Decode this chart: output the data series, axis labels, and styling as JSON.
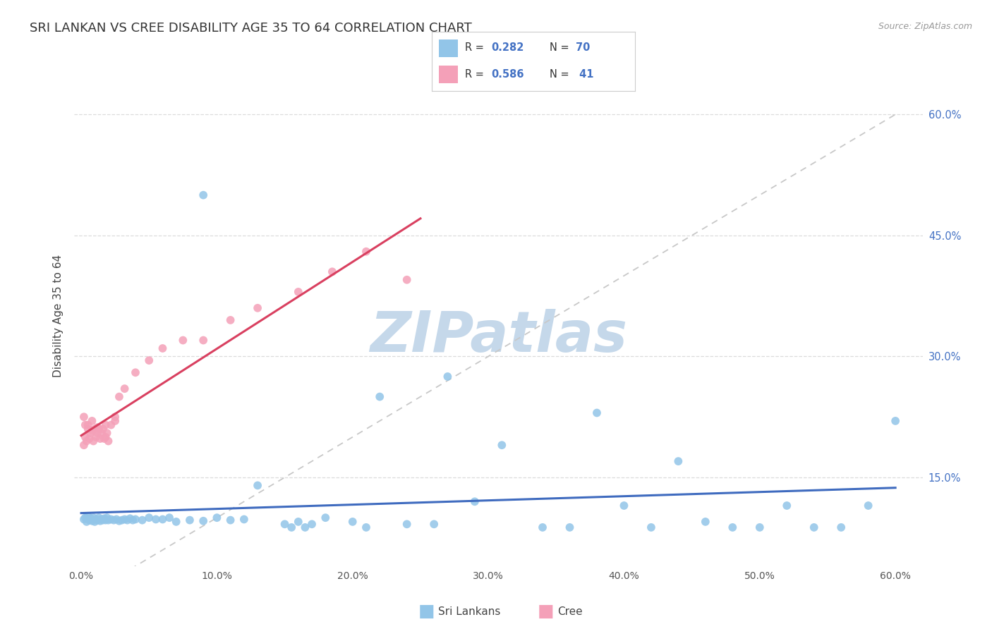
{
  "title": "SRI LANKAN VS CREE DISABILITY AGE 35 TO 64 CORRELATION CHART",
  "source_text": "Source: ZipAtlas.com",
  "ylabel": "Disability Age 35 to 64",
  "xlim": [
    -0.005,
    0.62
  ],
  "ylim": [
    0.04,
    0.66
  ],
  "xtick_vals": [
    0.0,
    0.1,
    0.2,
    0.3,
    0.4,
    0.5,
    0.6
  ],
  "xticklabels": [
    "0.0%",
    "10.0%",
    "20.0%",
    "30.0%",
    "40.0%",
    "50.0%",
    "60.0%"
  ],
  "ytick_vals": [
    0.15,
    0.3,
    0.45,
    0.6
  ],
  "yticklabels": [
    "15.0%",
    "30.0%",
    "45.0%",
    "60.0%"
  ],
  "sri_color": "#92C5E8",
  "cree_color": "#F4A0B8",
  "sri_line_color": "#3F6BBF",
  "cree_line_color": "#D94060",
  "overall_line_color": "#C8C8C8",
  "bg_color": "#FFFFFF",
  "grid_color": "#DCDCDC",
  "watermark": "ZIPatlas",
  "watermark_color": "#C5D8EA",
  "sri_x": [
    0.002,
    0.003,
    0.004,
    0.005,
    0.006,
    0.007,
    0.008,
    0.009,
    0.01,
    0.011,
    0.012,
    0.013,
    0.014,
    0.015,
    0.016,
    0.017,
    0.018,
    0.019,
    0.02,
    0.022,
    0.024,
    0.026,
    0.028,
    0.03,
    0.032,
    0.034,
    0.036,
    0.038,
    0.04,
    0.045,
    0.05,
    0.055,
    0.06,
    0.065,
    0.07,
    0.08,
    0.09,
    0.1,
    0.11,
    0.12,
    0.13,
    0.15,
    0.155,
    0.16,
    0.165,
    0.17,
    0.18,
    0.2,
    0.21,
    0.22,
    0.24,
    0.26,
    0.29,
    0.31,
    0.34,
    0.36,
    0.38,
    0.4,
    0.42,
    0.44,
    0.46,
    0.48,
    0.5,
    0.52,
    0.54,
    0.56,
    0.58,
    0.6,
    0.27,
    0.09
  ],
  "sri_y": [
    0.098,
    0.1,
    0.095,
    0.102,
    0.097,
    0.099,
    0.096,
    0.1,
    0.095,
    0.098,
    0.097,
    0.1,
    0.096,
    0.098,
    0.097,
    0.099,
    0.097,
    0.1,
    0.097,
    0.098,
    0.097,
    0.098,
    0.096,
    0.097,
    0.098,
    0.097,
    0.099,
    0.097,
    0.098,
    0.097,
    0.1,
    0.098,
    0.098,
    0.1,
    0.095,
    0.097,
    0.096,
    0.1,
    0.097,
    0.098,
    0.14,
    0.092,
    0.088,
    0.095,
    0.088,
    0.092,
    0.1,
    0.095,
    0.088,
    0.25,
    0.092,
    0.092,
    0.12,
    0.19,
    0.088,
    0.088,
    0.23,
    0.115,
    0.088,
    0.17,
    0.095,
    0.088,
    0.088,
    0.115,
    0.088,
    0.088,
    0.115,
    0.22,
    0.275,
    0.5
  ],
  "cree_x": [
    0.002,
    0.003,
    0.004,
    0.005,
    0.006,
    0.007,
    0.008,
    0.009,
    0.01,
    0.011,
    0.012,
    0.013,
    0.014,
    0.015,
    0.016,
    0.017,
    0.018,
    0.019,
    0.02,
    0.022,
    0.025,
    0.028,
    0.032,
    0.04,
    0.05,
    0.06,
    0.075,
    0.09,
    0.11,
    0.13,
    0.16,
    0.185,
    0.21,
    0.24,
    0.002,
    0.003,
    0.005,
    0.008,
    0.012,
    0.018,
    0.025
  ],
  "cree_y": [
    0.19,
    0.2,
    0.195,
    0.21,
    0.198,
    0.205,
    0.208,
    0.195,
    0.21,
    0.2,
    0.205,
    0.21,
    0.198,
    0.205,
    0.21,
    0.198,
    0.2,
    0.205,
    0.195,
    0.215,
    0.22,
    0.25,
    0.26,
    0.28,
    0.295,
    0.31,
    0.32,
    0.32,
    0.345,
    0.36,
    0.38,
    0.405,
    0.43,
    0.395,
    0.225,
    0.215,
    0.215,
    0.22,
    0.212,
    0.215,
    0.225
  ]
}
